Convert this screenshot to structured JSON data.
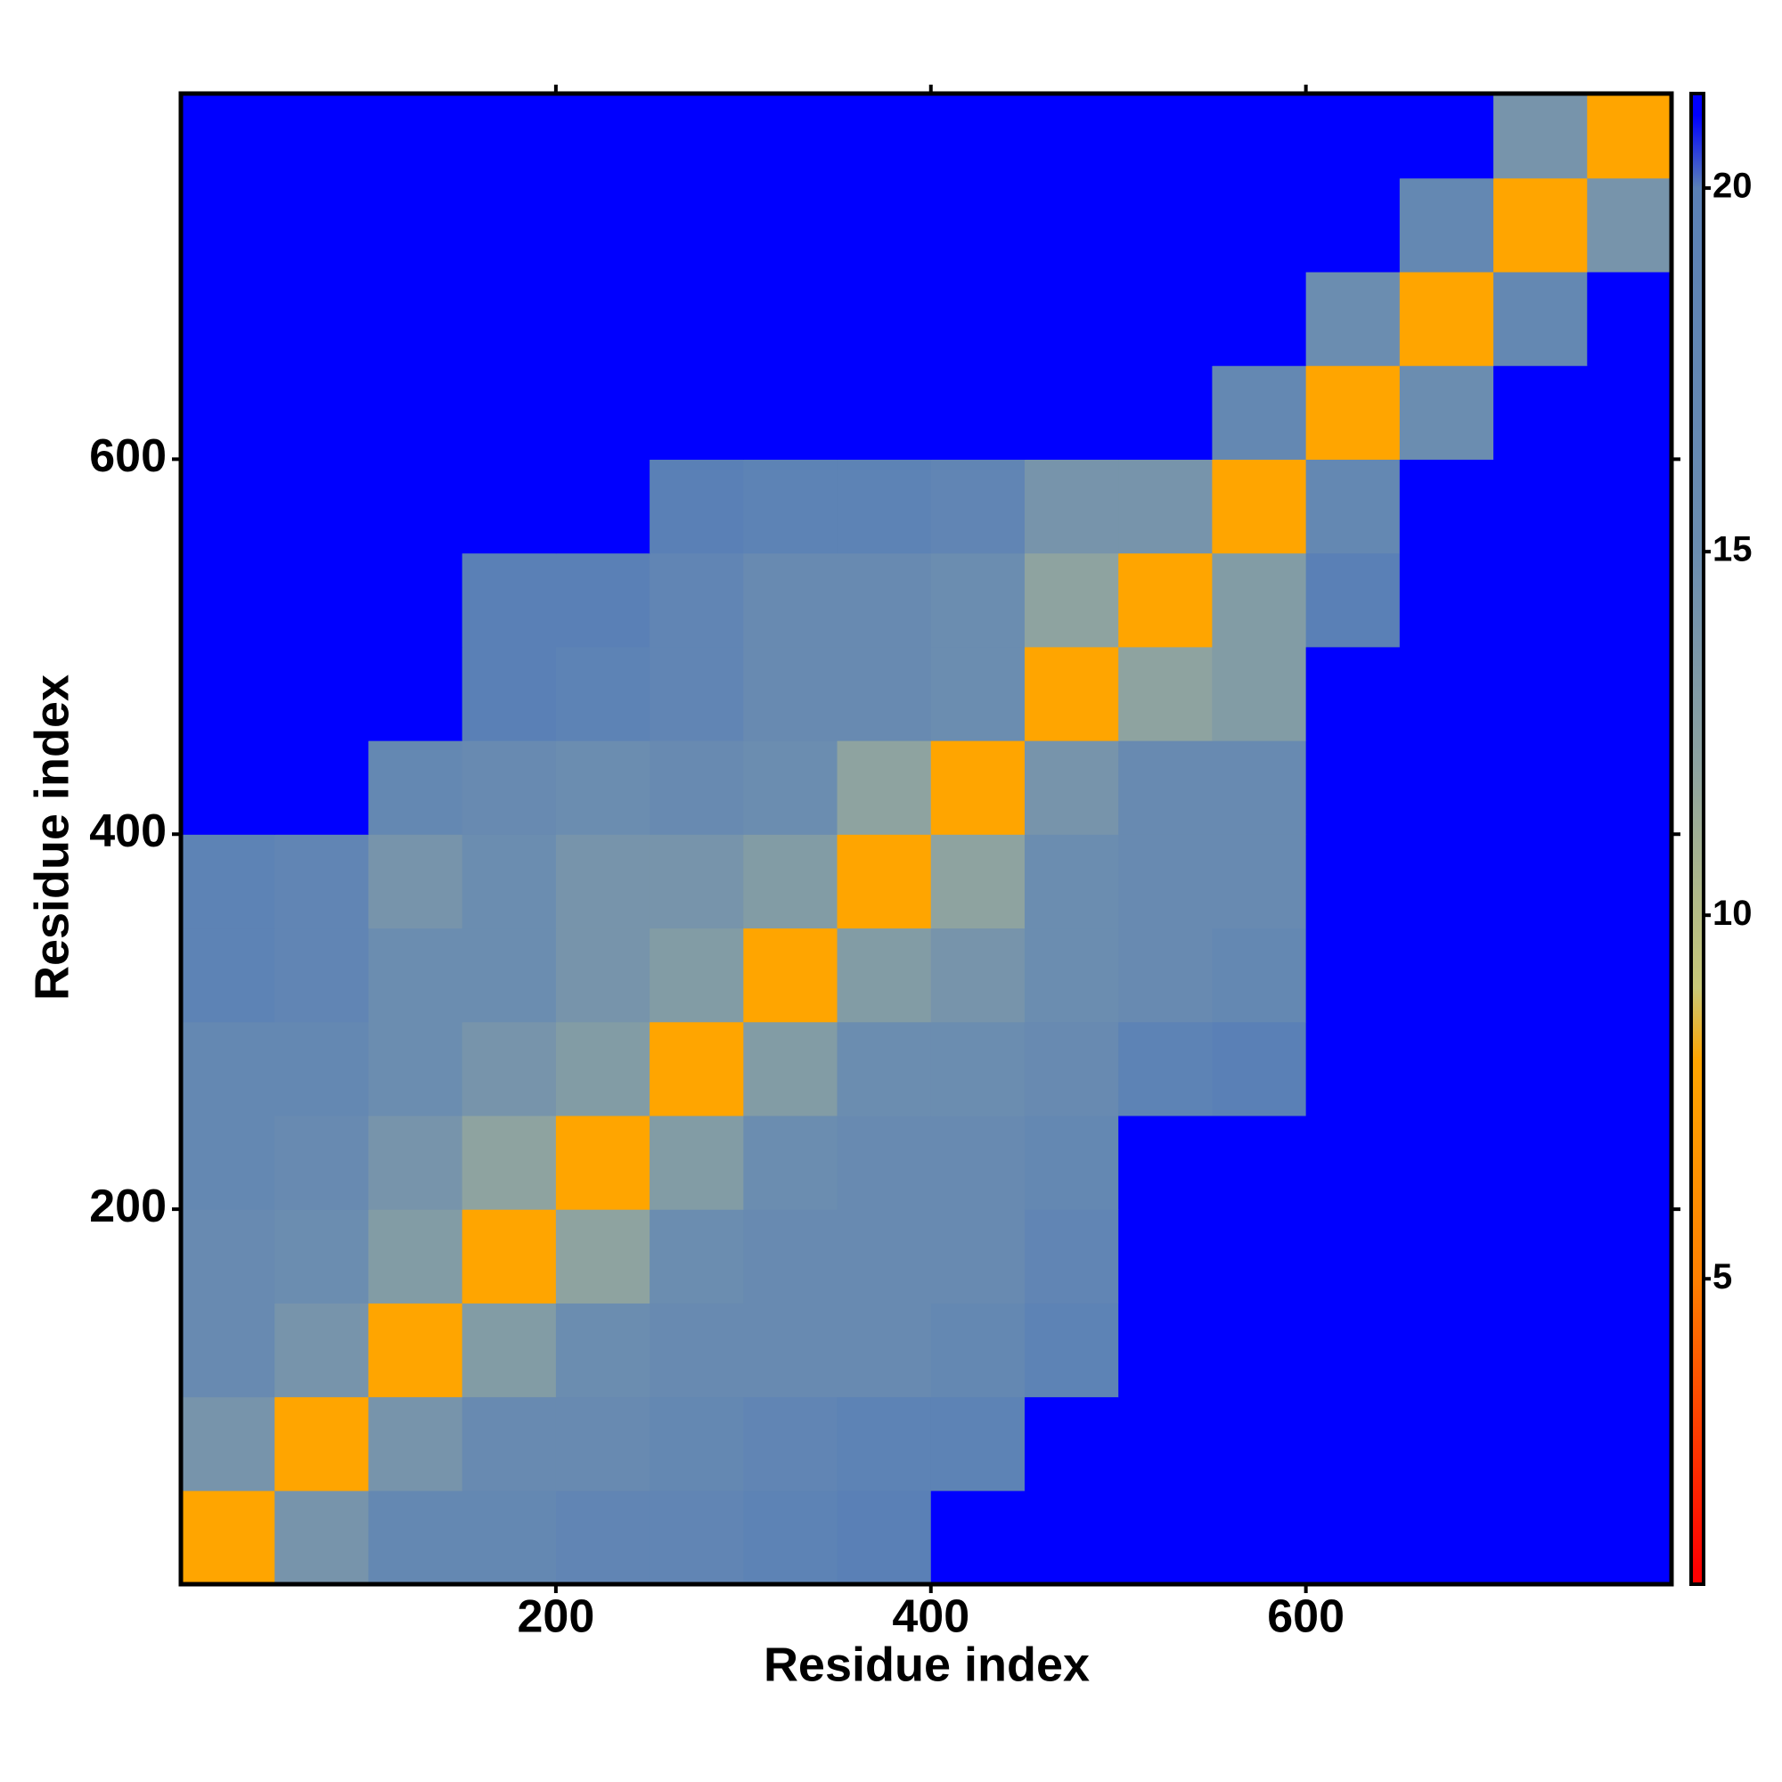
{
  "chart_data": {
    "type": "heatmap",
    "x_label": "Residue index",
    "y_label": "Residue index",
    "bins": [
      0,
      50,
      100,
      150,
      200,
      250,
      300,
      350,
      400,
      450,
      500,
      550,
      600,
      650,
      700,
      750,
      800
    ],
    "xlim": [
      0,
      795
    ],
    "ylim": [
      0,
      795
    ],
    "xticks": [
      200,
      400,
      600
    ],
    "yticks": [
      200,
      400,
      600
    ],
    "z": [
      [
        8,
        14,
        17,
        17,
        18,
        18,
        19,
        20,
        21,
        21,
        21,
        21,
        21,
        21,
        21,
        21
      ],
      [
        14,
        8,
        14,
        16,
        16,
        17,
        18,
        19,
        19,
        21,
        21,
        21,
        21,
        21,
        21,
        21
      ],
      [
        16,
        14,
        8,
        13,
        15,
        16,
        16,
        16,
        17,
        19,
        21,
        21,
        21,
        21,
        21,
        21
      ],
      [
        16,
        15,
        13,
        8,
        12,
        15,
        16,
        16,
        16,
        18,
        21,
        21,
        21,
        21,
        21,
        21
      ],
      [
        17,
        16,
        14,
        12,
        8,
        13,
        15,
        16,
        16,
        17,
        21,
        21,
        21,
        21,
        21,
        21
      ],
      [
        17,
        17,
        15,
        14,
        13,
        8,
        13,
        15,
        15,
        16,
        19,
        20,
        21,
        21,
        21,
        21
      ],
      [
        19,
        18,
        15,
        15,
        14,
        13,
        8,
        13,
        14,
        15,
        16,
        17,
        21,
        21,
        21,
        21
      ],
      [
        19,
        18,
        14,
        15,
        14,
        14,
        13,
        8,
        12,
        15,
        16,
        16,
        21,
        21,
        21,
        21
      ],
      [
        21,
        21,
        17,
        16,
        15,
        16,
        15,
        12,
        8,
        14,
        16,
        16,
        21,
        21,
        21,
        21
      ],
      [
        21,
        21,
        21,
        20,
        19,
        18,
        16,
        16,
        15,
        8,
        12,
        13,
        21,
        21,
        21,
        21
      ],
      [
        21,
        21,
        21,
        20,
        20,
        18,
        16,
        16,
        15,
        12,
        8,
        13,
        20,
        21,
        21,
        21
      ],
      [
        21,
        21,
        21,
        21,
        21,
        20,
        19,
        19,
        18,
        14,
        14,
        8,
        17,
        21,
        21,
        21
      ],
      [
        21,
        21,
        21,
        21,
        21,
        21,
        21,
        21,
        21,
        21,
        21,
        17,
        8,
        15,
        21,
        21
      ],
      [
        21,
        21,
        21,
        21,
        21,
        21,
        21,
        21,
        21,
        21,
        21,
        21,
        15,
        8,
        17,
        21
      ],
      [
        21,
        21,
        21,
        21,
        21,
        21,
        21,
        21,
        21,
        21,
        21,
        21,
        21,
        17,
        8,
        14
      ],
      [
        21,
        21,
        21,
        21,
        21,
        21,
        21,
        21,
        21,
        21,
        21,
        21,
        21,
        21,
        14,
        8
      ]
    ],
    "clim": [
      0.8,
      21.3
    ],
    "cticks": [
      5,
      10,
      15,
      20
    ],
    "colorscale": [
      {
        "value": 1,
        "color": "#ff0000"
      },
      {
        "value": 5,
        "color": "#ff8000"
      },
      {
        "value": 8,
        "color": "#ffa500"
      },
      {
        "value": 9,
        "color": "#c8c878"
      },
      {
        "value": 12,
        "color": "#8ea3a0"
      },
      {
        "value": 15,
        "color": "#6b8db0"
      },
      {
        "value": 20,
        "color": "#5a80b6"
      },
      {
        "value": 21,
        "color": "#0000ff"
      }
    ]
  }
}
